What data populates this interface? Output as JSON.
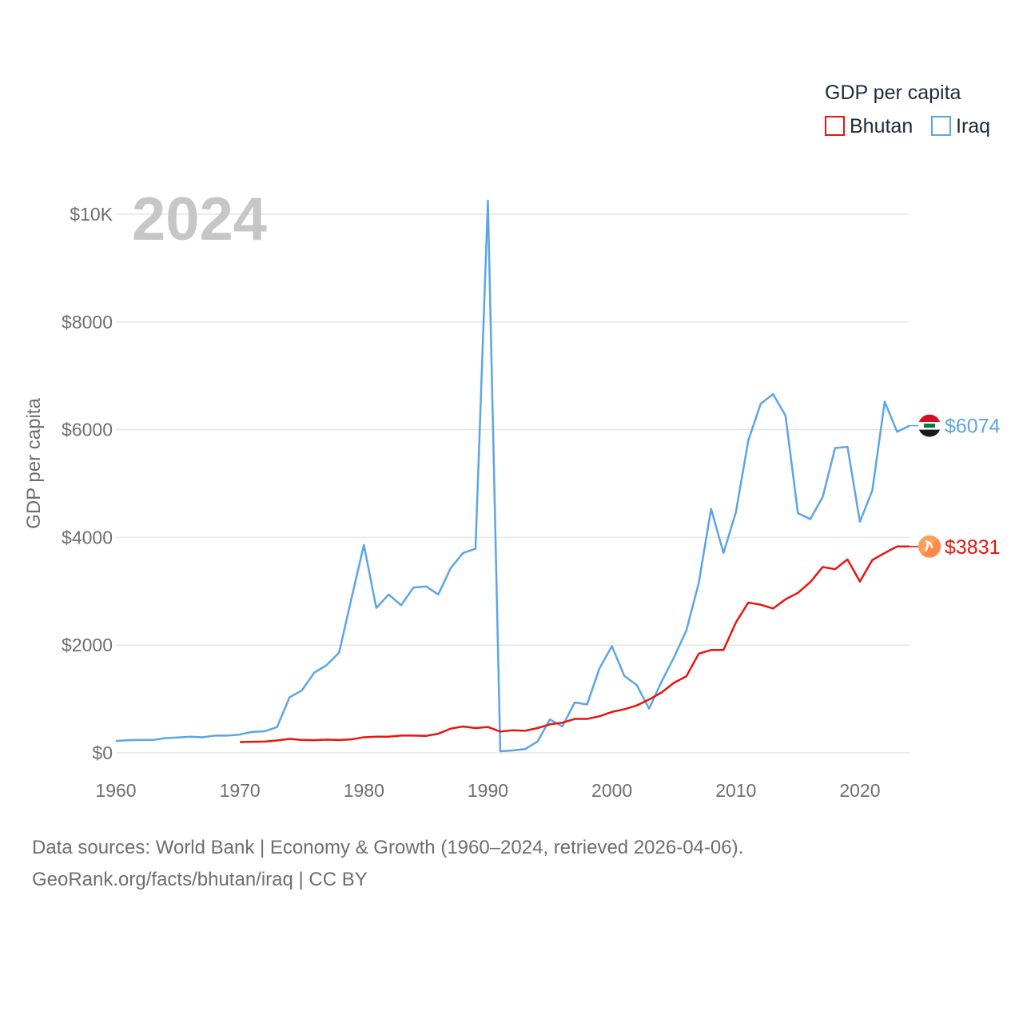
{
  "chart_data": {
    "type": "line",
    "year_label": "2024",
    "ylabel": "GDP per capita",
    "xlabel": "",
    "xlim": [
      1960,
      2024
    ],
    "ylim": [
      0,
      10000
    ],
    "x_ticks": [
      {
        "value": 1960,
        "label": "1960"
      },
      {
        "value": 1970,
        "label": "1970"
      },
      {
        "value": 1980,
        "label": "1980"
      },
      {
        "value": 1990,
        "label": "1990"
      },
      {
        "value": 2000,
        "label": "2000"
      },
      {
        "value": 2010,
        "label": "2010"
      },
      {
        "value": 2020,
        "label": "2020"
      }
    ],
    "y_ticks": [
      {
        "value": 0,
        "label": "$0"
      },
      {
        "value": 2000,
        "label": "$2000"
      },
      {
        "value": 4000,
        "label": "$4000"
      },
      {
        "value": 6000,
        "label": "$6000"
      },
      {
        "value": 8000,
        "label": "$8000"
      },
      {
        "value": 10000,
        "label": "$10K"
      }
    ],
    "legend": {
      "title": "GDP per capita",
      "position": "top-right",
      "entries": [
        {
          "name": "Bhutan",
          "color": "#e8150d"
        },
        {
          "name": "Iraq",
          "color": "#5ca5e5"
        }
      ]
    },
    "series": [
      {
        "name": "Iraq",
        "color": "#5ca5e5",
        "flag": "iraq-flag-icon",
        "end_label": "$6074",
        "start_year": 1960,
        "values": [
          220,
          235,
          240,
          240,
          275,
          285,
          300,
          290,
          320,
          320,
          340,
          390,
          400,
          480,
          1030,
          1160,
          1490,
          1630,
          1860,
          2870,
          3860,
          2690,
          2940,
          2740,
          3070,
          3090,
          2940,
          3430,
          3710,
          3790,
          10250,
          30,
          45,
          70,
          210,
          620,
          490,
          935,
          900,
          1570,
          1980,
          1430,
          1260,
          820,
          1320,
          1770,
          2270,
          3150,
          4530,
          3710,
          4470,
          5800,
          6480,
          6660,
          6260,
          4450,
          4340,
          4750,
          5660,
          5680,
          4290,
          4870,
          6520,
          5960,
          6074
        ]
      },
      {
        "name": "Bhutan",
        "color": "#e8150d",
        "flag": "bhutan-flag-icon",
        "end_label": "$3831",
        "start_year": 1970,
        "values": [
          200,
          205,
          210,
          230,
          260,
          240,
          235,
          245,
          240,
          250,
          290,
          300,
          300,
          320,
          320,
          315,
          355,
          450,
          490,
          460,
          480,
          395,
          420,
          410,
          460,
          530,
          560,
          630,
          630,
          680,
          760,
          810,
          880,
          990,
          1120,
          1300,
          1420,
          1840,
          1910,
          1910,
          2420,
          2790,
          2750,
          2680,
          2850,
          2970,
          3170,
          3450,
          3410,
          3590,
          3180,
          3580,
          3710,
          3831,
          3831
        ]
      }
    ]
  },
  "footer": {
    "line1": "Data sources: World Bank | Economy & Growth (1960–2024, retrieved 2026-04-06).",
    "line2": "GeoRank.org/facts/bhutan/iraq | CC BY"
  }
}
